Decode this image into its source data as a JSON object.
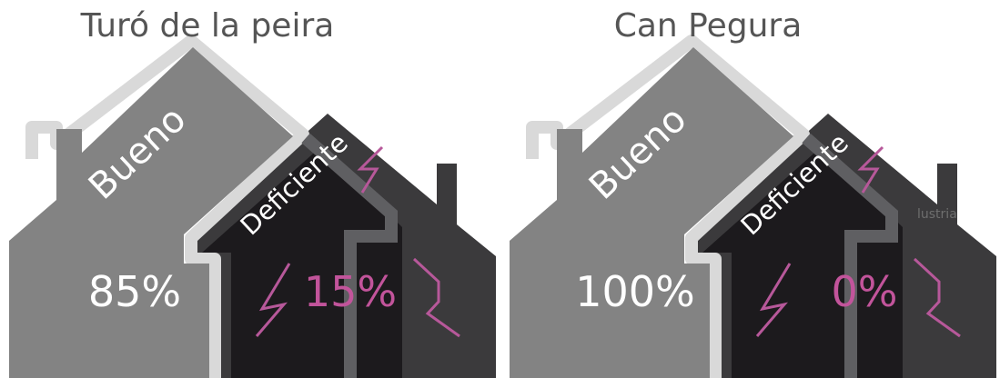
{
  "chart_data": [
    {
      "type": "pictogram",
      "title": "Turó de la peira",
      "categories": [
        "Bueno",
        "Deficiente"
      ],
      "values": [
        85,
        15
      ],
      "value_labels": [
        "85%",
        "15%"
      ],
      "units": "%"
    },
    {
      "type": "pictogram",
      "title": "Can Pegura",
      "categories": [
        "Bueno",
        "Deficiente"
      ],
      "values": [
        100,
        0
      ],
      "value_labels": [
        "100%",
        "0%"
      ],
      "units": "%",
      "faint_text": "lustria"
    }
  ],
  "colors": {
    "good_house": "#838383",
    "bad_house_inner": "#1c1a1d",
    "back_house": "#3b3a3c",
    "separator": "#d8d8d8",
    "crack": "#b7589a",
    "title_text": "#555555",
    "accent_pink": "#c2549b"
  }
}
